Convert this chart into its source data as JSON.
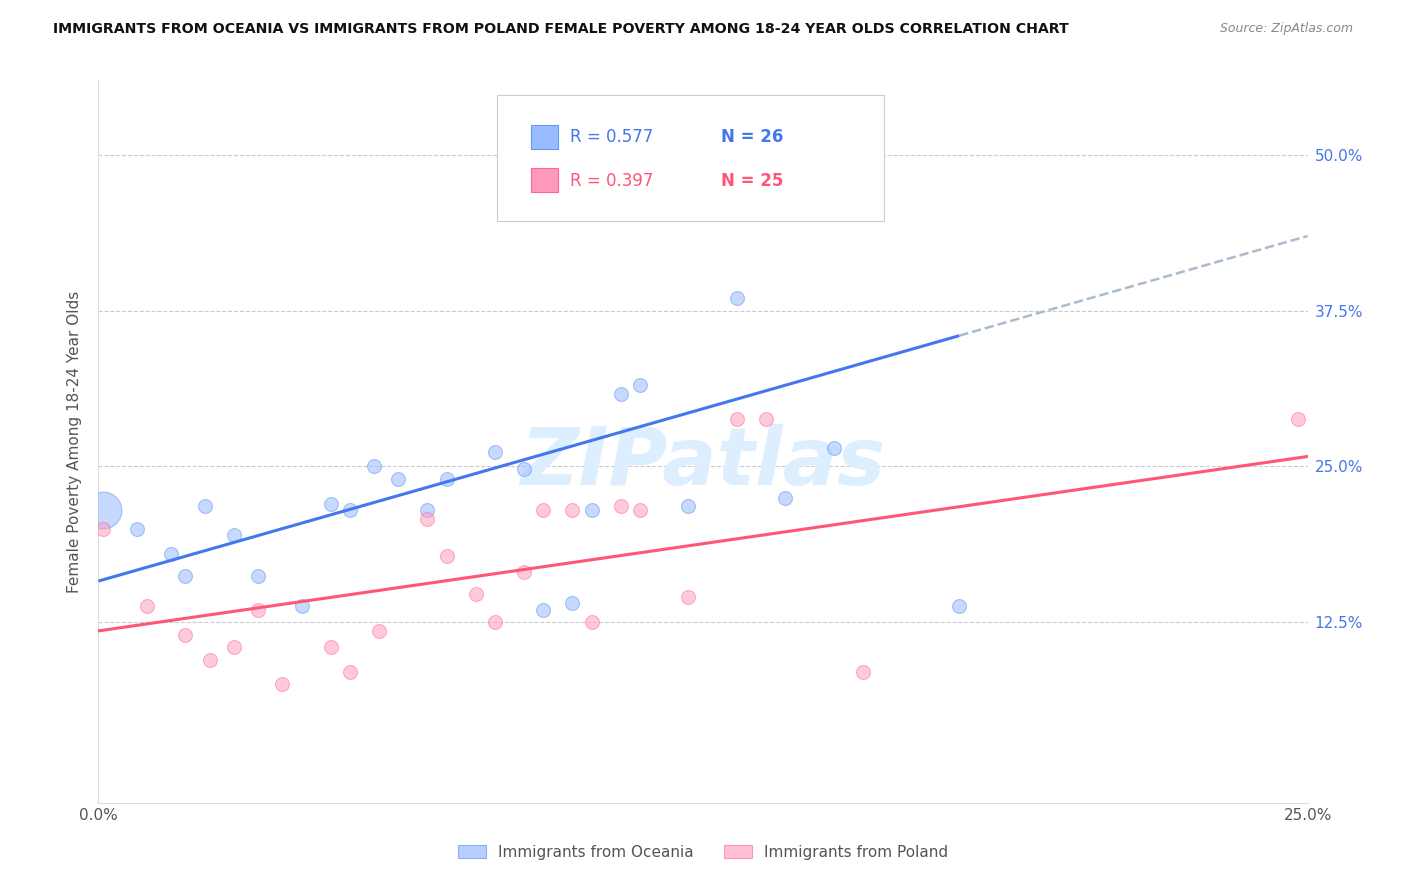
{
  "title": "IMMIGRANTS FROM OCEANIA VS IMMIGRANTS FROM POLAND FEMALE POVERTY AMONG 18-24 YEAR OLDS CORRELATION CHART",
  "source": "Source: ZipAtlas.com",
  "ylabel": "Female Poverty Among 18-24 Year Olds",
  "y_ticks": [
    0.125,
    0.25,
    0.375,
    0.5
  ],
  "y_tick_labels": [
    "12.5%",
    "25.0%",
    "37.5%",
    "50.0%"
  ],
  "xlim": [
    0.0,
    0.25
  ],
  "ylim": [
    -0.02,
    0.56
  ],
  "legend_oceania": "Immigrants from Oceania",
  "legend_poland": "Immigrants from Poland",
  "R_oceania": "R = 0.577",
  "N_oceania": "N = 26",
  "R_poland": "R = 0.397",
  "N_poland": "N = 25",
  "color_oceania_fill": "#99BBFF",
  "color_oceania_edge": "#6699EE",
  "color_poland_fill": "#FF99BB",
  "color_poland_edge": "#FF6688",
  "color_trend_oceania": "#4477EE",
  "color_trend_poland": "#FF5577",
  "color_trend_dashed": "#AABBCC",
  "watermark": "ZIPatlas",
  "watermark_color": "#DDEEFF",
  "oceania_x": [
    0.001,
    0.008,
    0.015,
    0.018,
    0.022,
    0.028,
    0.033,
    0.042,
    0.048,
    0.052,
    0.057,
    0.062,
    0.068,
    0.072,
    0.082,
    0.088,
    0.092,
    0.098,
    0.102,
    0.108,
    0.112,
    0.122,
    0.132,
    0.142,
    0.152,
    0.178
  ],
  "oceania_y": [
    0.215,
    0.2,
    0.18,
    0.162,
    0.218,
    0.195,
    0.162,
    0.138,
    0.22,
    0.215,
    0.25,
    0.24,
    0.215,
    0.24,
    0.262,
    0.248,
    0.135,
    0.14,
    0.215,
    0.308,
    0.315,
    0.218,
    0.385,
    0.225,
    0.265,
    0.138
  ],
  "oceania_size": [
    700,
    100,
    100,
    100,
    100,
    100,
    100,
    100,
    100,
    100,
    100,
    100,
    100,
    100,
    100,
    100,
    100,
    100,
    100,
    100,
    100,
    100,
    100,
    100,
    100,
    100
  ],
  "poland_x": [
    0.001,
    0.01,
    0.018,
    0.023,
    0.028,
    0.033,
    0.038,
    0.048,
    0.052,
    0.058,
    0.068,
    0.072,
    0.078,
    0.082,
    0.088,
    0.092,
    0.098,
    0.102,
    0.108,
    0.112,
    0.122,
    0.132,
    0.138,
    0.158,
    0.248
  ],
  "poland_y": [
    0.2,
    0.138,
    0.115,
    0.095,
    0.105,
    0.135,
    0.075,
    0.105,
    0.085,
    0.118,
    0.208,
    0.178,
    0.148,
    0.125,
    0.165,
    0.215,
    0.215,
    0.125,
    0.218,
    0.215,
    0.145,
    0.288,
    0.288,
    0.085,
    0.288
  ],
  "poland_size": [
    100,
    100,
    100,
    100,
    100,
    100,
    100,
    100,
    100,
    100,
    100,
    100,
    100,
    100,
    100,
    100,
    100,
    100,
    100,
    100,
    100,
    100,
    100,
    100,
    100
  ],
  "trend_oceania_x0": 0.0,
  "trend_oceania_y0": 0.158,
  "trend_oceania_x1": 0.178,
  "trend_oceania_y1": 0.355,
  "trend_oceania_x2": 0.25,
  "trend_oceania_y2": 0.435,
  "trend_poland_x0": 0.0,
  "trend_poland_y0": 0.118,
  "trend_poland_x1": 0.25,
  "trend_poland_y1": 0.258
}
